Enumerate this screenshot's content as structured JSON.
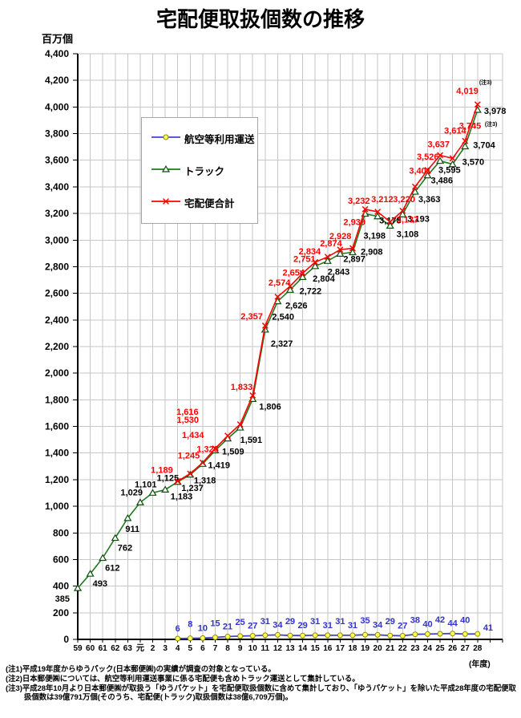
{
  "page": {
    "title": "宅配便取扱個数の推移",
    "y_axis_unit": "百万個",
    "x_axis_unit": "(年度)"
  },
  "legend": {
    "items": [
      {
        "label": "航空等利用運送",
        "marker": "circle",
        "color_key": "air"
      },
      {
        "label": "トラック",
        "marker": "triangle",
        "color_key": "truck"
      },
      {
        "label": "宅配便合計",
        "marker": "x",
        "color_key": "total"
      }
    ]
  },
  "colors": {
    "total": "#ff0000",
    "truck": "#1e7a1e",
    "truck_marker_stroke": "#0e4d0e",
    "air_line": "#4444cc",
    "air_label": "#3333cc",
    "air_marker_fill": "#ffff55",
    "air_marker_stroke": "#8a8a00",
    "grid": "#c6c6c6",
    "axis": "#000000",
    "black_label": "#000000"
  },
  "chart_data": {
    "type": "line",
    "title": "宅配便取扱個数の推移",
    "ylabel": "百万個",
    "xlabel": "(年度)",
    "ylim": [
      0,
      4400
    ],
    "y_tick_step": 200,
    "grid": true,
    "legend_position": "upper-left-inside",
    "x_categories": [
      "59",
      "60",
      "61",
      "62",
      "63",
      "元",
      "2",
      "3",
      "4",
      "5",
      "6",
      "7",
      "8",
      "9",
      "10",
      "11",
      "12",
      "13",
      "14",
      "15",
      "16",
      "17",
      "18",
      "19",
      "20",
      "21",
      "22",
      "23",
      "24",
      "25",
      "26",
      "27",
      "28"
    ],
    "series": [
      {
        "name": "宅配便合計",
        "marker": "x",
        "color_key": "total",
        "start_index": 8,
        "values": [
          1189,
          1245,
          1328,
          1434,
          1530,
          1616,
          1833,
          2357,
          2574,
          2654,
          2751,
          2834,
          2874,
          2928,
          2939,
          3232,
          3212,
          3137,
          3220,
          3401,
          3526,
          3637,
          3614,
          3745,
          4019
        ],
        "last_value_note": "(注3)"
      },
      {
        "name": "トラック",
        "marker": "triangle",
        "color_key": "truck",
        "start_index": 0,
        "values": [
          385,
          493,
          612,
          762,
          911,
          1029,
          1101,
          1125,
          1183,
          1237,
          1318,
          1419,
          1509,
          1591,
          1806,
          2327,
          2540,
          2626,
          2722,
          2804,
          2843,
          2897,
          2908,
          3198,
          3178,
          3108,
          3193,
          3363,
          3486,
          3595,
          3570,
          3704,
          3978
        ],
        "last_value_note": "(注3)"
      },
      {
        "name": "航空等利用運送",
        "marker": "circle",
        "color_key": "air",
        "start_index": 8,
        "values": [
          6,
          8,
          10,
          15,
          21,
          25,
          27,
          31,
          34,
          29,
          29,
          31,
          31,
          31,
          31,
          35,
          34,
          29,
          27,
          38,
          40,
          42,
          44,
          40,
          41
        ]
      }
    ]
  },
  "notes": [
    "(注1)平成19年度からゆうパック(日本郵便㈱)の実績が調査の対象となっている。",
    "(注2)日本郵便㈱については、航空等利用運送事業に係る宅配便も含めトラック運送として集計している。",
    "(注3)平成28年10月より日本郵便㈱が取扱う「ゆうパケット」を宅配便取扱個数に含めて集計しており、「ゆうパケット」を除いた平成28年度の宅配便取",
    "扱個数は39億791万個(そのうち、宅配便(トラック)取扱個数は38億6,709万個)。"
  ]
}
